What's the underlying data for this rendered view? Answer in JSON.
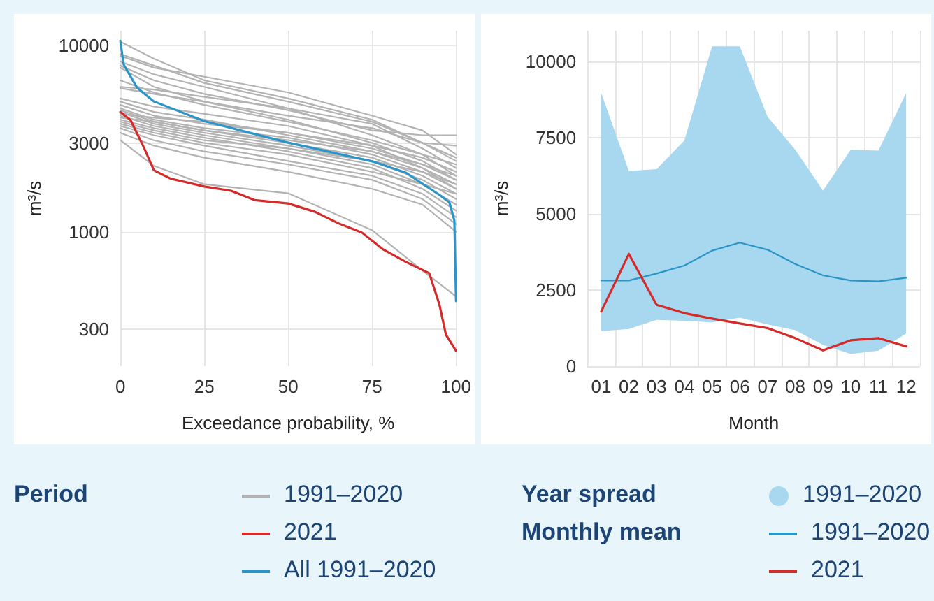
{
  "chart_data": [
    {
      "type": "line",
      "xlabel": "Exceedance probability, %",
      "ylabel": "m³/s",
      "legend_title": "Period",
      "legend": "bottom",
      "grid": true,
      "log": "y",
      "marker": "none",
      "line_style": "solid",
      "xlim": [
        0,
        100
      ],
      "xticks": [
        0,
        25,
        50,
        75,
        100
      ],
      "ylim": [
        190,
        12000
      ],
      "yticks": [
        300,
        1000,
        3000,
        10000
      ],
      "x": [
        0,
        10,
        25,
        50,
        75,
        90,
        100
      ],
      "series": [
        {
          "name": "1991–2020",
          "color": "#b3b3b3",
          "values": [
            10500,
            8500,
            6500,
            5200,
            4000,
            3000,
            2400
          ]
        },
        {
          "color": "#b3b3b3",
          "values": [
            8800,
            7600,
            6800,
            5600,
            4200,
            3500,
            2600
          ]
        },
        {
          "color": "#b3b3b3",
          "values": [
            8200,
            7000,
            6000,
            4600,
            3300,
            2600,
            2000
          ]
        },
        {
          "color": "#b3b3b3",
          "values": [
            7800,
            6500,
            5500,
            4500,
            3500,
            3300,
            3300
          ]
        },
        {
          "color": "#b3b3b3",
          "values": [
            7600,
            6000,
            5000,
            4200,
            3600,
            3000,
            2900
          ]
        },
        {
          "color": "#b3b3b3",
          "values": [
            6000,
            5800,
            5300,
            4600,
            3800,
            2800,
            2200
          ]
        },
        {
          "color": "#b3b3b3",
          "values": [
            5900,
            5500,
            5000,
            4000,
            3000,
            2400,
            1900
          ]
        },
        {
          "color": "#b3b3b3",
          "values": [
            5000,
            4400,
            4000,
            3300,
            2700,
            2200,
            1700
          ]
        },
        {
          "color": "#b3b3b3",
          "values": [
            4800,
            4200,
            3800,
            3400,
            2900,
            2500,
            2100
          ]
        },
        {
          "color": "#b3b3b3",
          "values": [
            4600,
            4000,
            3600,
            3200,
            2600,
            2100,
            1800
          ]
        },
        {
          "color": "#b3b3b3",
          "values": [
            4500,
            3900,
            3500,
            3000,
            2500,
            2000,
            1600
          ]
        },
        {
          "color": "#b3b3b3",
          "values": [
            4400,
            3800,
            3400,
            2900,
            2400,
            1900,
            1500
          ]
        },
        {
          "color": "#b3b3b3",
          "values": [
            4200,
            3700,
            3300,
            2800,
            2300,
            1800,
            1400
          ]
        },
        {
          "color": "#b3b3b3",
          "values": [
            4000,
            3600,
            3200,
            2700,
            2200,
            1700,
            1300
          ]
        },
        {
          "color": "#b3b3b3",
          "values": [
            3800,
            3400,
            3000,
            2600,
            2100,
            1800,
            1600
          ]
        },
        {
          "color": "#b3b3b3",
          "values": [
            3700,
            3300,
            2900,
            2400,
            2000,
            1600,
            1200
          ]
        },
        {
          "color": "#b3b3b3",
          "values": [
            3600,
            3100,
            2700,
            2300,
            1900,
            1500,
            1100
          ]
        },
        {
          "color": "#b3b3b3",
          "values": [
            3400,
            2900,
            2500,
            2100,
            1700,
            1400,
            1000
          ]
        },
        {
          "color": "#b3b3b3",
          "values": [
            3100,
            2260,
            1800,
            1610,
            1020,
            620,
            450
          ]
        },
        {
          "color": "#b3b3b3",
          "values": [
            4300,
            4100,
            3900,
            3400,
            2800,
            2300,
            2000
          ]
        },
        {
          "color": "#b3b3b3",
          "values": [
            9000,
            7800,
            6300,
            5000,
            3900,
            3000,
            2500
          ]
        },
        {
          "color": "#b3b3b3",
          "values": [
            6500,
            5600,
            4800,
            3900,
            3100,
            2600,
            2300
          ]
        },
        {
          "color": "#b3b3b3",
          "values": [
            4100,
            3900,
            3500,
            3100,
            2700,
            2300,
            1900
          ]
        },
        {
          "color": "#b3b3b3",
          "values": [
            3900,
            3500,
            3100,
            2800,
            2400,
            2100,
            1700
          ]
        },
        {
          "color": "#b3b3b3",
          "values": [
            5200,
            4700,
            4300,
            3700,
            2900,
            2200,
            1800
          ]
        },
        {
          "name": "2021",
          "color": "#d42a2a",
          "x": [
            0,
            3,
            7,
            10,
            15,
            25,
            33,
            40,
            50,
            58,
            65,
            72,
            78,
            85,
            92,
            95,
            97,
            100
          ],
          "values": [
            4400,
            3990,
            2840,
            2140,
            1930,
            1750,
            1660,
            1480,
            1420,
            1280,
            1110,
            990,
            810,
            690,
            600,
            410,
            280,
            230
          ]
        },
        {
          "name": "All 1991–2020",
          "color": "#2a95c8",
          "x": [
            0,
            1,
            5,
            10,
            25,
            50,
            75,
            85,
            95,
            98,
            99.5,
            100
          ],
          "values": [
            10600,
            7900,
            5930,
            5010,
            3930,
            3010,
            2390,
            2080,
            1580,
            1440,
            1150,
            425
          ]
        }
      ]
    },
    {
      "type": "line",
      "xlabel": "Month",
      "ylabel": "m³/s",
      "legend_title": "Monthly mean",
      "annotations": [
        "Year spread"
      ],
      "legend": "bottom",
      "grid": true,
      "marker": "none",
      "line_style": "solid",
      "categories": [
        "01",
        "02",
        "03",
        "04",
        "05",
        "06",
        "07",
        "08",
        "09",
        "10",
        "11",
        "12"
      ],
      "ylim": [
        0,
        11000
      ],
      "yticks": [
        0,
        2500,
        5000,
        7500,
        10000
      ],
      "series": [
        {
          "name": "1991–2020",
          "color": "#2a95c8",
          "values": [
            2810,
            2810,
            3040,
            3300,
            3790,
            4050,
            3820,
            3350,
            2980,
            2810,
            2780,
            2900
          ],
          "lower": [
            1150,
            1220,
            1520,
            1490,
            1440,
            1590,
            1370,
            1180,
            700,
            400,
            510,
            1070
          ],
          "upper": [
            8960,
            6400,
            6460,
            7400,
            10490,
            10490,
            8180,
            7100,
            5760,
            7100,
            7070,
            8960
          ]
        },
        {
          "name": "2021",
          "color": "#d42a2a",
          "values": [
            1790,
            3680,
            2010,
            1740,
            1560,
            1400,
            1250,
            920,
            520,
            850,
            920,
            650
          ]
        }
      ]
    }
  ]
}
